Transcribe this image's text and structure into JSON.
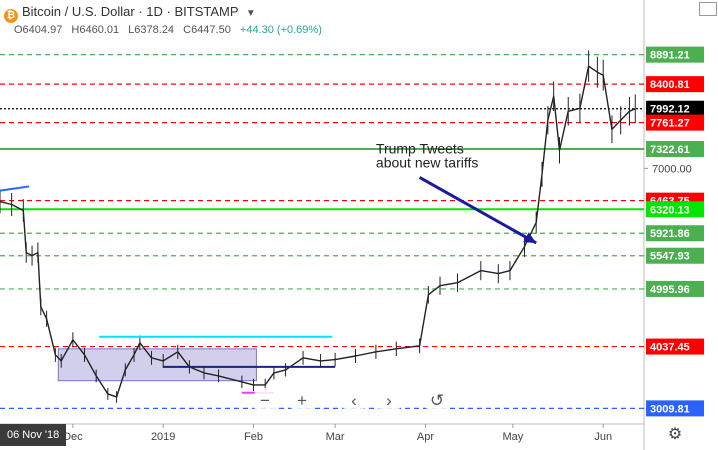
{
  "header": {
    "symbol_title": "Bitcoin / U.S. Dollar",
    "interval": "1D",
    "exchange": "BITSTAMP",
    "ohlc": {
      "open": "O6404.97",
      "high": "H6460.01",
      "low": "L6378.24",
      "close": "C6447.50",
      "change": "+44.30 (+0.69%)"
    }
  },
  "bottom_bar": {
    "selected_date": "06 Nov '18"
  },
  "colors": {
    "up": "#222222",
    "green_level": "#4caf50",
    "red_level": "#ff0000",
    "bright_green": "#00e600",
    "cyan": "#00e5ff",
    "navy": "#1a237e",
    "arrow": "#1a1a9e",
    "box": "#9c95d6",
    "blue_dashed": "#2962ff"
  },
  "chart_data": {
    "type": "line",
    "xlim": [
      "2018-11-06",
      "2019-06-15"
    ],
    "ylim": [
      2750,
      9800
    ],
    "x_ticks": [
      {
        "label": "Dec",
        "date": "2018-12-01"
      },
      {
        "label": "2019",
        "date": "2019-01-01"
      },
      {
        "label": "Feb",
        "date": "2019-02-01"
      },
      {
        "label": "Mar",
        "date": "2019-03-01"
      },
      {
        "label": "Apr",
        "date": "2019-04-01"
      },
      {
        "label": "May",
        "date": "2019-05-01"
      },
      {
        "label": "Jun",
        "date": "2019-06-01"
      }
    ],
    "y_ticks": [
      {
        "value": 7000,
        "label": "7000.00"
      }
    ],
    "price_series": {
      "name": "BTC/USD daily close",
      "points": [
        [
          "2018-11-06",
          6447
        ],
        [
          "2018-11-10",
          6400
        ],
        [
          "2018-11-14",
          6300
        ],
        [
          "2018-11-15",
          5600
        ],
        [
          "2018-11-17",
          5550
        ],
        [
          "2018-11-19",
          5600
        ],
        [
          "2018-11-20",
          4700
        ],
        [
          "2018-11-22",
          4500
        ],
        [
          "2018-11-25",
          3900
        ],
        [
          "2018-11-27",
          3800
        ],
        [
          "2018-12-01",
          4150
        ],
        [
          "2018-12-05",
          3900
        ],
        [
          "2018-12-09",
          3550
        ],
        [
          "2018-12-13",
          3250
        ],
        [
          "2018-12-16",
          3200
        ],
        [
          "2018-12-19",
          3650
        ],
        [
          "2018-12-22",
          3900
        ],
        [
          "2018-12-24",
          4100
        ],
        [
          "2018-12-28",
          3850
        ],
        [
          "2019-01-01",
          3800
        ],
        [
          "2019-01-06",
          3950
        ],
        [
          "2019-01-10",
          3700
        ],
        [
          "2019-01-15",
          3600
        ],
        [
          "2019-01-20",
          3550
        ],
        [
          "2019-01-28",
          3450
        ],
        [
          "2019-02-01",
          3400
        ],
        [
          "2019-02-05",
          3400
        ],
        [
          "2019-02-08",
          3600
        ],
        [
          "2019-02-12",
          3650
        ],
        [
          "2019-02-18",
          3850
        ],
        [
          "2019-02-24",
          3800
        ],
        [
          "2019-03-01",
          3820
        ],
        [
          "2019-03-08",
          3880
        ],
        [
          "2019-03-15",
          3950
        ],
        [
          "2019-03-22",
          4000
        ],
        [
          "2019-03-30",
          4050
        ],
        [
          "2019-04-02",
          4900
        ],
        [
          "2019-04-06",
          5050
        ],
        [
          "2019-04-12",
          5100
        ],
        [
          "2019-04-20",
          5300
        ],
        [
          "2019-04-26",
          5250
        ],
        [
          "2019-04-30",
          5300
        ],
        [
          "2019-05-05",
          5700
        ],
        [
          "2019-05-09",
          6100
        ],
        [
          "2019-05-11",
          6900
        ],
        [
          "2019-05-13",
          7800
        ],
        [
          "2019-05-15",
          8200
        ],
        [
          "2019-05-17",
          7300
        ],
        [
          "2019-05-20",
          7950
        ],
        [
          "2019-05-24",
          8000
        ],
        [
          "2019-05-27",
          8700
        ],
        [
          "2019-05-30",
          8600
        ],
        [
          "2019-06-01",
          8550
        ],
        [
          "2019-06-04",
          7650
        ],
        [
          "2019-06-07",
          7800
        ],
        [
          "2019-06-10",
          7950
        ],
        [
          "2019-06-12",
          7992
        ]
      ]
    },
    "levels": [
      {
        "value": 8891.21,
        "label": "8891.21",
        "color": "#4caf50",
        "style": "dashed"
      },
      {
        "value": 8400.81,
        "label": "8400.81",
        "color": "#ff0000",
        "style": "dashed"
      },
      {
        "value": 7992.12,
        "label": "7992.12",
        "color": "#000000",
        "style": "dotted"
      },
      {
        "value": 7761.27,
        "label": "7761.27",
        "color": "#ff0000",
        "style": "dashed"
      },
      {
        "value": 7322.61,
        "label": "7322.61",
        "color": "#4caf50",
        "style": "solid"
      },
      {
        "value": 6463.75,
        "label": "6463.75",
        "color": "#ff0000",
        "style": "dashed"
      },
      {
        "value": 6320.13,
        "label": "6320.13",
        "color": "#00e600",
        "style": "solid"
      },
      {
        "value": 5921.86,
        "label": "5921.86",
        "color": "#4caf50",
        "style": "dashed"
      },
      {
        "value": 5547.93,
        "label": "5547.93",
        "color": "#4caf50",
        "style": "dashed"
      },
      {
        "value": 4995.96,
        "label": "4995.96",
        "color": "#4caf50",
        "style": "dashed"
      },
      {
        "value": 4037.45,
        "label": "4037.45",
        "color": "#ff0000",
        "style": "dashed"
      },
      {
        "value": 3009.81,
        "label": "3009.81",
        "color": "#2962ff",
        "style": "dashed"
      }
    ],
    "annotations": [
      {
        "type": "text",
        "text_lines": [
          "Trump Tweets",
          "about new tariffs"
        ],
        "date": "2019-03-15",
        "value": 7250
      },
      {
        "type": "arrow",
        "from": [
          "2019-03-30",
          6850
        ],
        "to": [
          "2019-05-09",
          5760
        ]
      },
      {
        "type": "box",
        "from": [
          "2018-11-26",
          4000
        ],
        "to": [
          "2019-02-02",
          3470
        ]
      },
      {
        "type": "segment",
        "color": "#00e5ff",
        "from": [
          "2018-12-10",
          4200
        ],
        "to": [
          "2019-02-28",
          4200
        ]
      },
      {
        "type": "segment",
        "color": "#1a237e",
        "from": [
          "2019-01-01",
          3700
        ],
        "to": [
          "2019-03-01",
          3700
        ]
      },
      {
        "type": "segment",
        "color": "#2962ff",
        "from": [
          "2018-11-06",
          6630
        ],
        "to": [
          "2018-11-16",
          6700
        ]
      },
      {
        "type": "segment",
        "color": "#e040fb",
        "from": [
          "2019-01-28",
          3270
        ],
        "to": [
          "2019-02-08",
          3270
        ]
      }
    ]
  }
}
